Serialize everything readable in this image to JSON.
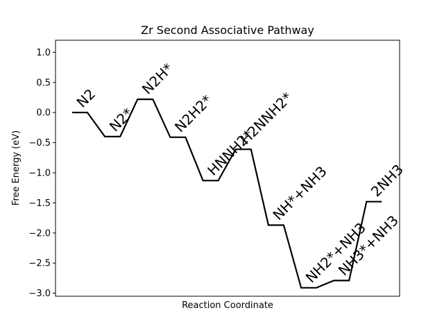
{
  "chart_data": {
    "type": "line",
    "title": "Zr Second Associative Pathway",
    "xlabel": "Reaction Coordinate",
    "ylabel": "Free Energy (eV)",
    "ylim": [
      -3.05,
      1.2
    ],
    "yticks": [
      1.0,
      0.5,
      0.0,
      -0.5,
      -1.0,
      -1.5,
      -2.0,
      -2.5,
      -3.0
    ],
    "ytick_labels": [
      "1.0",
      "0.5",
      "0.0",
      "−0.5",
      "−1.0",
      "−1.5",
      "−2.0",
      "−2.5",
      "−3.0"
    ],
    "grid": false,
    "line_color": "#000000",
    "states": [
      {
        "label": "N2",
        "energy": 0.0
      },
      {
        "label": "N2*",
        "energy": -0.4
      },
      {
        "label": "N2H*",
        "energy": 0.22
      },
      {
        "label": "N2H2*",
        "energy": -0.41
      },
      {
        "label": "HNNH2*",
        "energy": -1.13
      },
      {
        "label": "H2NNH2*",
        "energy": -0.61
      },
      {
        "label": "NH*+NH3",
        "energy": -1.87
      },
      {
        "label": "NH2*+NH3",
        "energy": -2.91
      },
      {
        "label": "NH3*+NH3",
        "energy": -2.79
      },
      {
        "label": "2NH3",
        "energy": -1.48
      }
    ]
  }
}
